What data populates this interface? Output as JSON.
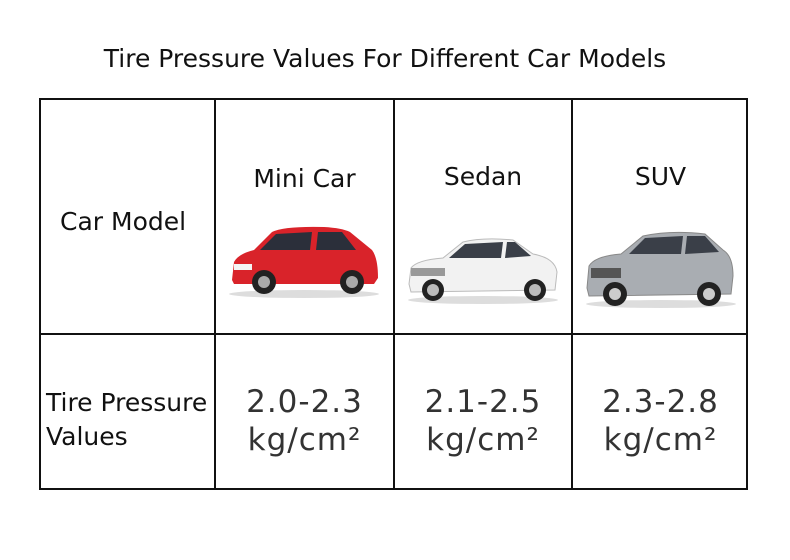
{
  "title": "Tire Pressure Values For Different Car Models",
  "table": {
    "header": {
      "label": "Car Model",
      "models": [
        "Mini Car",
        "Sedan",
        "SUV"
      ]
    },
    "pressure": {
      "label": "Tire Pressure Values",
      "cells": [
        {
          "range": "2.0-2.3",
          "unit": "kg/cm²"
        },
        {
          "range": "2.1-2.5",
          "unit": "kg/cm²"
        },
        {
          "range": "2.3-2.8",
          "unit": "kg/cm²"
        }
      ]
    }
  }
}
